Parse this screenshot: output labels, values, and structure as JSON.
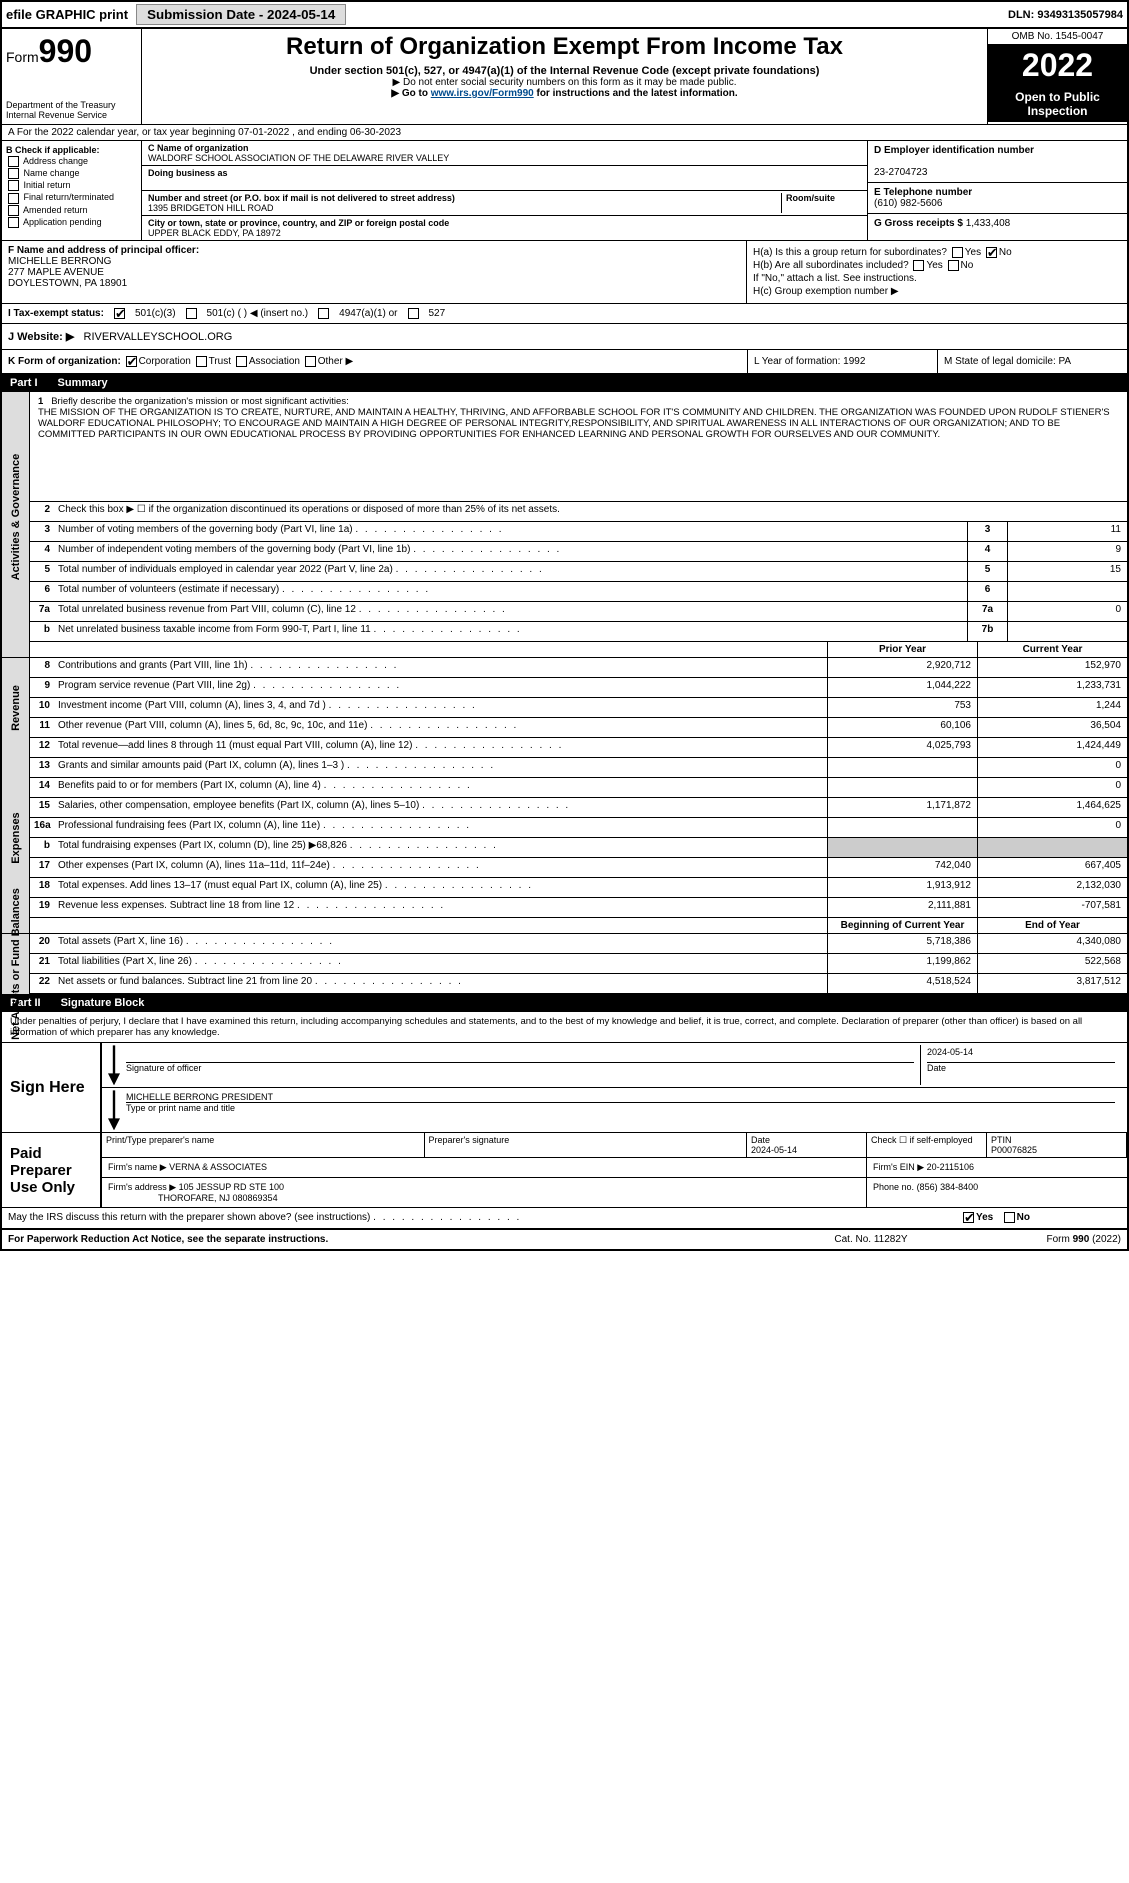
{
  "topbar": {
    "efile": "efile GRAPHIC print",
    "sub_btn": "Submission Date - 2024-05-14",
    "dln": "DLN: 93493135057984"
  },
  "header": {
    "form_word": "Form",
    "form_num": "990",
    "dept": "Department of the Treasury",
    "irs": "Internal Revenue Service",
    "title": "Return of Organization Exempt From Income Tax",
    "sub1": "Under section 501(c), 527, or 4947(a)(1) of the Internal Revenue Code (except private foundations)",
    "sub2": "▶ Do not enter social security numbers on this form as it may be made public.",
    "link_pre": "▶ Go to ",
    "link": "www.irs.gov/Form990",
    "link_post": " for instructions and the latest information.",
    "omb": "OMB No. 1545-0047",
    "year": "2022",
    "open": "Open to Public Inspection"
  },
  "lineA": "A For the 2022 calendar year, or tax year beginning 07-01-2022  , and ending 06-30-2023",
  "colB": {
    "hdr": "B Check if applicable:",
    "items": [
      "Address change",
      "Name change",
      "Initial return",
      "Final return/terminated",
      "Amended return",
      "Application pending"
    ]
  },
  "colC": {
    "name_lbl": "C Name of organization",
    "name": "WALDORF SCHOOL ASSOCIATION OF THE DELAWARE RIVER VALLEY",
    "dba_lbl": "Doing business as",
    "dba": "",
    "addr_lbl": "Number and street (or P.O. box if mail is not delivered to street address)",
    "room_lbl": "Room/suite",
    "addr": "1395 BRIDGETON HILL ROAD",
    "city_lbl": "City or town, state or province, country, and ZIP or foreign postal code",
    "city": "UPPER BLACK EDDY, PA  18972"
  },
  "colD": {
    "ein_lbl": "D Employer identification number",
    "ein": "23-2704723",
    "tel_lbl": "E Telephone number",
    "tel": "(610) 982-5606",
    "gross_lbl": "G Gross receipts $",
    "gross": "1,433,408"
  },
  "colF": {
    "lbl": "F  Name and address of principal officer:",
    "name": "MICHELLE BERRONG",
    "addr1": "277 MAPLE AVENUE",
    "addr2": "DOYLESTOWN, PA  18901"
  },
  "colH": {
    "a": "H(a)  Is this a group return for subordinates?",
    "b": "H(b)  Are all subordinates included?",
    "b2": "If \"No,\" attach a list. See instructions.",
    "c": "H(c)  Group exemption number ▶"
  },
  "rowI": {
    "lbl": "I    Tax-exempt status:",
    "opts": [
      "501(c)(3)",
      "501(c) (   ) ◀ (insert no.)",
      "4947(a)(1) or",
      "527"
    ]
  },
  "rowJ": {
    "lbl": "J   Website: ▶",
    "val": "RIVERVALLEYSCHOOL.ORG"
  },
  "rowK": {
    "lbl": "K Form of organization:",
    "opts": [
      "Corporation",
      "Trust",
      "Association",
      "Other ▶"
    ],
    "L": "L Year of formation: 1992",
    "M": "M State of legal domicile: PA"
  },
  "part1": {
    "num": "Part I",
    "title": "Summary",
    "side_gov": "Activities & Governance",
    "side_rev": "Revenue",
    "side_exp": "Expenses",
    "side_net": "Net Assets or Fund Balances",
    "l1": "Briefly describe the organization's mission or most significant activities:",
    "mission": "THE MISSION OF THE ORGANIZATION IS TO CREATE, NURTURE, AND MAINTAIN A HEALTHY, THRIVING, AND AFFORBABLE SCHOOL FOR IT'S COMMUNITY AND CHILDREN. THE ORGANIZATION WAS FOUNDED UPON RUDOLF STIENER'S WALDORF EDUCATIONAL PHILOSOPHY; TO ENCOURAGE AND MAINTAIN A HIGH DEGREE OF PERSONAL INTEGRITY,RESPONSIBILITY, AND SPIRITUAL AWARENESS IN ALL INTERACTIONS OF OUR ORGANIZATION; AND TO BE COMMITTED PARTICIPANTS IN OUR OWN EDUCATIONAL PROCESS BY PROVIDING OPPORTUNITIES FOR ENHANCED LEARNING AND PERSONAL GROWTH FOR OURSELVES AND OUR COMMUNITY.",
    "l2": "Check this box ▶ ☐ if the organization discontinued its operations or disposed of more than 25% of its net assets.",
    "lines_gov": [
      {
        "n": "3",
        "t": "Number of voting members of the governing body (Part VI, line 1a)",
        "box": "3",
        "v": "11"
      },
      {
        "n": "4",
        "t": "Number of independent voting members of the governing body (Part VI, line 1b)",
        "box": "4",
        "v": "9"
      },
      {
        "n": "5",
        "t": "Total number of individuals employed in calendar year 2022 (Part V, line 2a)",
        "box": "5",
        "v": "15"
      },
      {
        "n": "6",
        "t": "Total number of volunteers (estimate if necessary)",
        "box": "6",
        "v": ""
      },
      {
        "n": "7a",
        "t": "Total unrelated business revenue from Part VIII, column (C), line 12",
        "box": "7a",
        "v": "0"
      },
      {
        "n": "b",
        "t": "Net unrelated business taxable income from Form 990-T, Part I, line 11",
        "box": "7b",
        "v": ""
      }
    ],
    "hdr_prior": "Prior Year",
    "hdr_curr": "Current Year",
    "lines_rev": [
      {
        "n": "8",
        "t": "Contributions and grants (Part VIII, line 1h)",
        "p": "2,920,712",
        "c": "152,970"
      },
      {
        "n": "9",
        "t": "Program service revenue (Part VIII, line 2g)",
        "p": "1,044,222",
        "c": "1,233,731"
      },
      {
        "n": "10",
        "t": "Investment income (Part VIII, column (A), lines 3, 4, and 7d )",
        "p": "753",
        "c": "1,244"
      },
      {
        "n": "11",
        "t": "Other revenue (Part VIII, column (A), lines 5, 6d, 8c, 9c, 10c, and 11e)",
        "p": "60,106",
        "c": "36,504"
      },
      {
        "n": "12",
        "t": "Total revenue—add lines 8 through 11 (must equal Part VIII, column (A), line 12)",
        "p": "4,025,793",
        "c": "1,424,449"
      }
    ],
    "lines_exp": [
      {
        "n": "13",
        "t": "Grants and similar amounts paid (Part IX, column (A), lines 1–3 )",
        "p": "",
        "c": "0"
      },
      {
        "n": "14",
        "t": "Benefits paid to or for members (Part IX, column (A), line 4)",
        "p": "",
        "c": "0"
      },
      {
        "n": "15",
        "t": "Salaries, other compensation, employee benefits (Part IX, column (A), lines 5–10)",
        "p": "1,171,872",
        "c": "1,464,625"
      },
      {
        "n": "16a",
        "t": "Professional fundraising fees (Part IX, column (A), line 11e)",
        "p": "",
        "c": "0"
      },
      {
        "n": "b",
        "t": "Total fundraising expenses (Part IX, column (D), line 25) ▶68,826",
        "p": "shade",
        "c": "shade"
      },
      {
        "n": "17",
        "t": "Other expenses (Part IX, column (A), lines 11a–11d, 11f–24e)",
        "p": "742,040",
        "c": "667,405"
      },
      {
        "n": "18",
        "t": "Total expenses. Add lines 13–17 (must equal Part IX, column (A), line 25)",
        "p": "1,913,912",
        "c": "2,132,030"
      },
      {
        "n": "19",
        "t": "Revenue less expenses. Subtract line 18 from line 12",
        "p": "2,111,881",
        "c": "-707,581"
      }
    ],
    "hdr_beg": "Beginning of Current Year",
    "hdr_end": "End of Year",
    "lines_net": [
      {
        "n": "20",
        "t": "Total assets (Part X, line 16)",
        "p": "5,718,386",
        "c": "4,340,080"
      },
      {
        "n": "21",
        "t": "Total liabilities (Part X, line 26)",
        "p": "1,199,862",
        "c": "522,568"
      },
      {
        "n": "22",
        "t": "Net assets or fund balances. Subtract line 21 from line 20",
        "p": "4,518,524",
        "c": "3,817,512"
      }
    ]
  },
  "part2": {
    "num": "Part II",
    "title": "Signature Block",
    "intro": "Under penalties of perjury, I declare that I have examined this return, including accompanying schedules and statements, and to the best of my knowledge and belief, it is true, correct, and complete. Declaration of preparer (other than officer) is based on all information of which preparer has any knowledge.",
    "sign_here": "Sign Here",
    "sig_lbl": "Signature of officer",
    "sig_date": "2024-05-14",
    "date_lbl": "Date",
    "officer": "MICHELLE BERRONG PRESIDENT",
    "officer_lbl": "Type or print name and title",
    "paid": "Paid Preparer Use Only",
    "prep_name_lbl": "Print/Type preparer's name",
    "prep_sig_lbl": "Preparer's signature",
    "prep_date": "2024-05-14",
    "self_emp": "Check ☐ if self-employed",
    "ptin_lbl": "PTIN",
    "ptin": "P00076825",
    "firm_name_lbl": "Firm's name    ▶",
    "firm_name": "VERNA & ASSOCIATES",
    "firm_ein_lbl": "Firm's EIN ▶",
    "firm_ein": "20-2115106",
    "firm_addr_lbl": "Firm's address ▶",
    "firm_addr": "105 JESSUP RD STE 100",
    "firm_addr2": "THOROFARE, NJ  080869354",
    "firm_phone_lbl": "Phone no.",
    "firm_phone": "(856) 384-8400",
    "discuss": "May the IRS discuss this return with the preparer shown above? (see instructions)",
    "yes": "Yes",
    "no": "No"
  },
  "footer": {
    "l": "For Paperwork Reduction Act Notice, see the separate instructions.",
    "m": "Cat. No. 11282Y",
    "r": "Form 990 (2022)"
  }
}
